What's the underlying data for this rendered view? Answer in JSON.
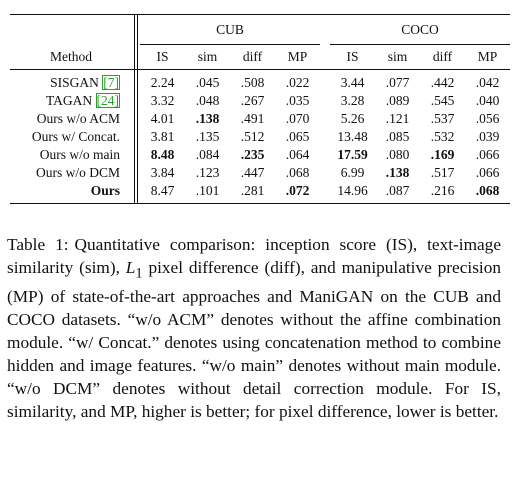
{
  "table": {
    "groups": [
      "CUB",
      "COCO"
    ],
    "method_header": "Method",
    "metric_headers": [
      "IS",
      "sim",
      "diff",
      "MP",
      "IS",
      "sim",
      "diff",
      "MP"
    ],
    "rows": [
      {
        "name": "SISGAN",
        "cite": "[7]",
        "values": [
          "2.24",
          ".045",
          ".508",
          ".022",
          "3.44",
          ".077",
          ".442",
          ".042"
        ],
        "bold": []
      },
      {
        "name": "TAGAN",
        "cite": "[24]",
        "values": [
          "3.32",
          ".048",
          ".267",
          ".035",
          "3.28",
          ".089",
          ".545",
          ".040"
        ],
        "bold": []
      },
      {
        "name": "Ours w/o ACM",
        "cite": "",
        "values": [
          "4.01",
          ".138",
          ".491",
          ".070",
          "5.26",
          ".121",
          ".537",
          ".056"
        ],
        "bold": [
          1
        ]
      },
      {
        "name": "Ours w/ Concat.",
        "cite": "",
        "values": [
          "3.81",
          ".135",
          ".512",
          ".065",
          "13.48",
          ".085",
          ".532",
          ".039"
        ],
        "bold": []
      },
      {
        "name": "Ours w/o main",
        "cite": "",
        "values": [
          "8.48",
          ".084",
          ".235",
          ".064",
          "17.59",
          ".080",
          ".169",
          ".066"
        ],
        "bold": [
          0,
          2,
          4,
          6
        ]
      },
      {
        "name": "Ours w/o DCM",
        "cite": "",
        "values": [
          "3.84",
          ".123",
          ".447",
          ".068",
          "6.99",
          ".138",
          ".517",
          ".066"
        ],
        "bold": [
          5
        ]
      },
      {
        "name": "Ours",
        "cite": "",
        "name_bold": true,
        "values": [
          "8.47",
          ".101",
          ".281",
          ".072",
          "14.96",
          ".087",
          ".216",
          ".068"
        ],
        "bold": [
          3,
          7
        ]
      }
    ]
  },
  "caption": {
    "label": "Table 1:",
    "text_before_math": "Quantitative comparison: inception score (IS), text-image similarity (sim),",
    "math": "L",
    "math_sub": "1",
    "text_after_math": "pixel difference (diff), and manipulative precision (MP) of state-of-the-art approaches and ManiGAN on the CUB and COCO datasets. “w/o ACM” denotes without the affine combination module. “w/ Concat.” denotes using concatenation method to combine hidden and image features. “w/o main” denotes without main module. “w/o DCM” denotes without detail correction module. For IS, similarity, and MP, higher is better; for pixel difference, lower is better."
  }
}
